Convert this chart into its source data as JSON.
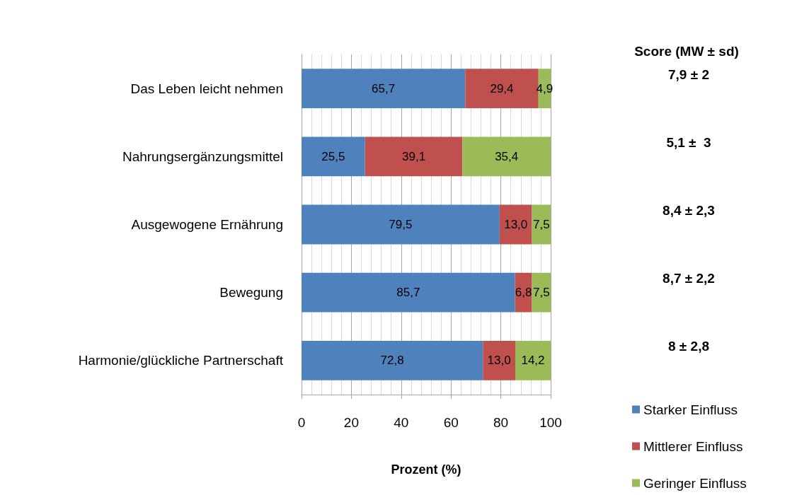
{
  "chart_data": {
    "type": "bar",
    "orientation": "horizontal",
    "stacked": true,
    "categories": [
      "Das Leben leicht nehmen",
      "Nahrungsergänzungsmittel",
      "Ausgewogene Ernährung",
      "Bewegung",
      "Harmonie/glückliche Partnerschaft"
    ],
    "series": [
      {
        "name": "Starker Einfluss",
        "color": "#4f81bd",
        "values": [
          65.7,
          25.5,
          79.5,
          85.7,
          72.8
        ],
        "value_labels": [
          "65,7",
          "25,5",
          "79,5",
          "85,7",
          "72,8"
        ]
      },
      {
        "name": "Mittlerer Einfluss",
        "color": "#c0504d",
        "values": [
          29.4,
          39.1,
          13.0,
          6.8,
          13.0
        ],
        "value_labels": [
          "29,4",
          "39,1",
          "13,0",
          "6,8",
          "13,0"
        ]
      },
      {
        "name": "Geringer Einfluss",
        "color": "#9bbb59",
        "values": [
          4.9,
          35.4,
          7.5,
          7.5,
          14.2
        ],
        "value_labels": [
          "4,9",
          "35,4",
          "7,5",
          "7,5",
          "14,2"
        ]
      }
    ],
    "xlim": [
      0,
      100
    ],
    "xticks": [
      0,
      20,
      40,
      60,
      80,
      100
    ],
    "xlabel": "Prozent (%)",
    "grid": "x",
    "legend": "bottom right",
    "annotations": [
      "Score (MW ± sd)",
      "7,9 ± 2",
      "5,1 ±  3",
      "8,4 ± 2,3",
      "8,7 ± 2,2",
      "8 ± 2,8"
    ]
  }
}
